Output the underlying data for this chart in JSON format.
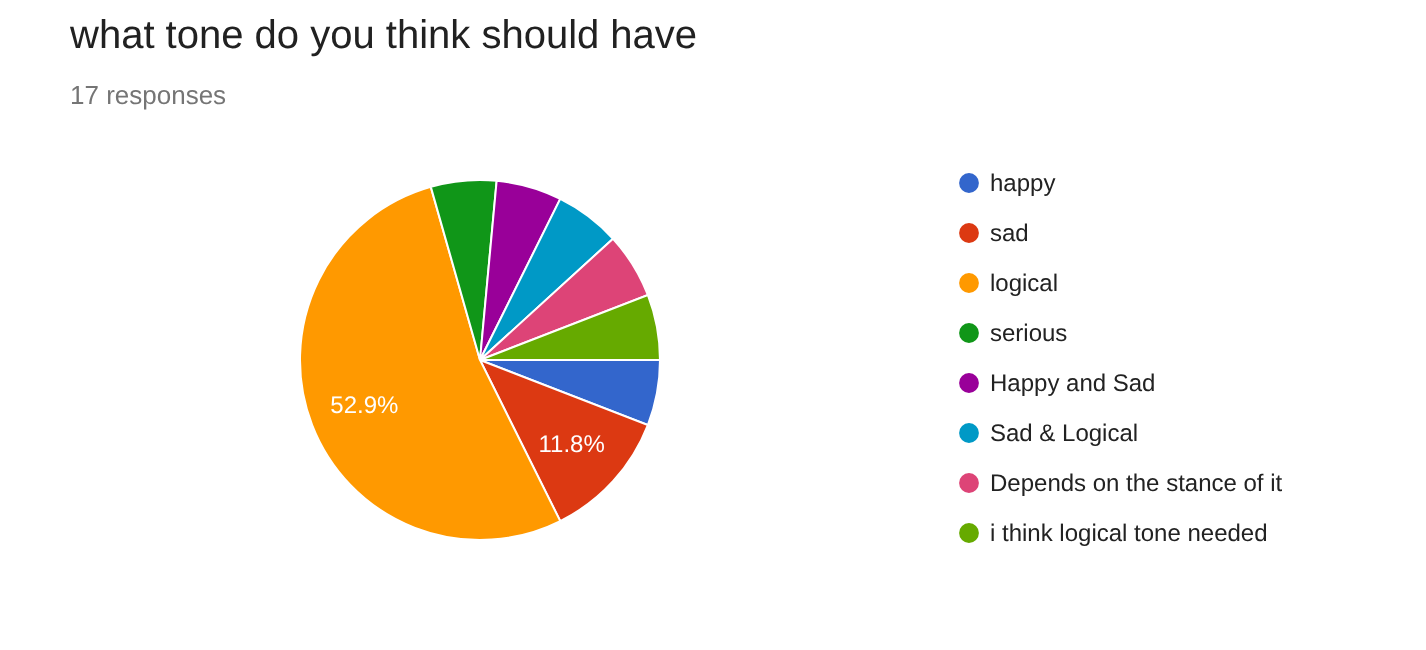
{
  "chart_data": {
    "type": "pie",
    "title": "what tone do you think should have",
    "subtitle": "17 responses",
    "categories": [
      "happy",
      "sad",
      "logical",
      "serious",
      "Happy and Sad",
      "Sad & Logical",
      "Depends on the stance of it",
      "i think logical tone needed"
    ],
    "values": [
      5.88,
      11.76,
      52.94,
      5.88,
      5.88,
      5.88,
      5.88,
      5.88
    ],
    "colors": [
      "#3366cc",
      "#dc3912",
      "#ff9900",
      "#109618",
      "#990099",
      "#0099c6",
      "#dd4477",
      "#66aa00"
    ],
    "value_labels": [
      null,
      "11.8%",
      "52.9%",
      null,
      null,
      null,
      null,
      null
    ],
    "legend": "right"
  }
}
